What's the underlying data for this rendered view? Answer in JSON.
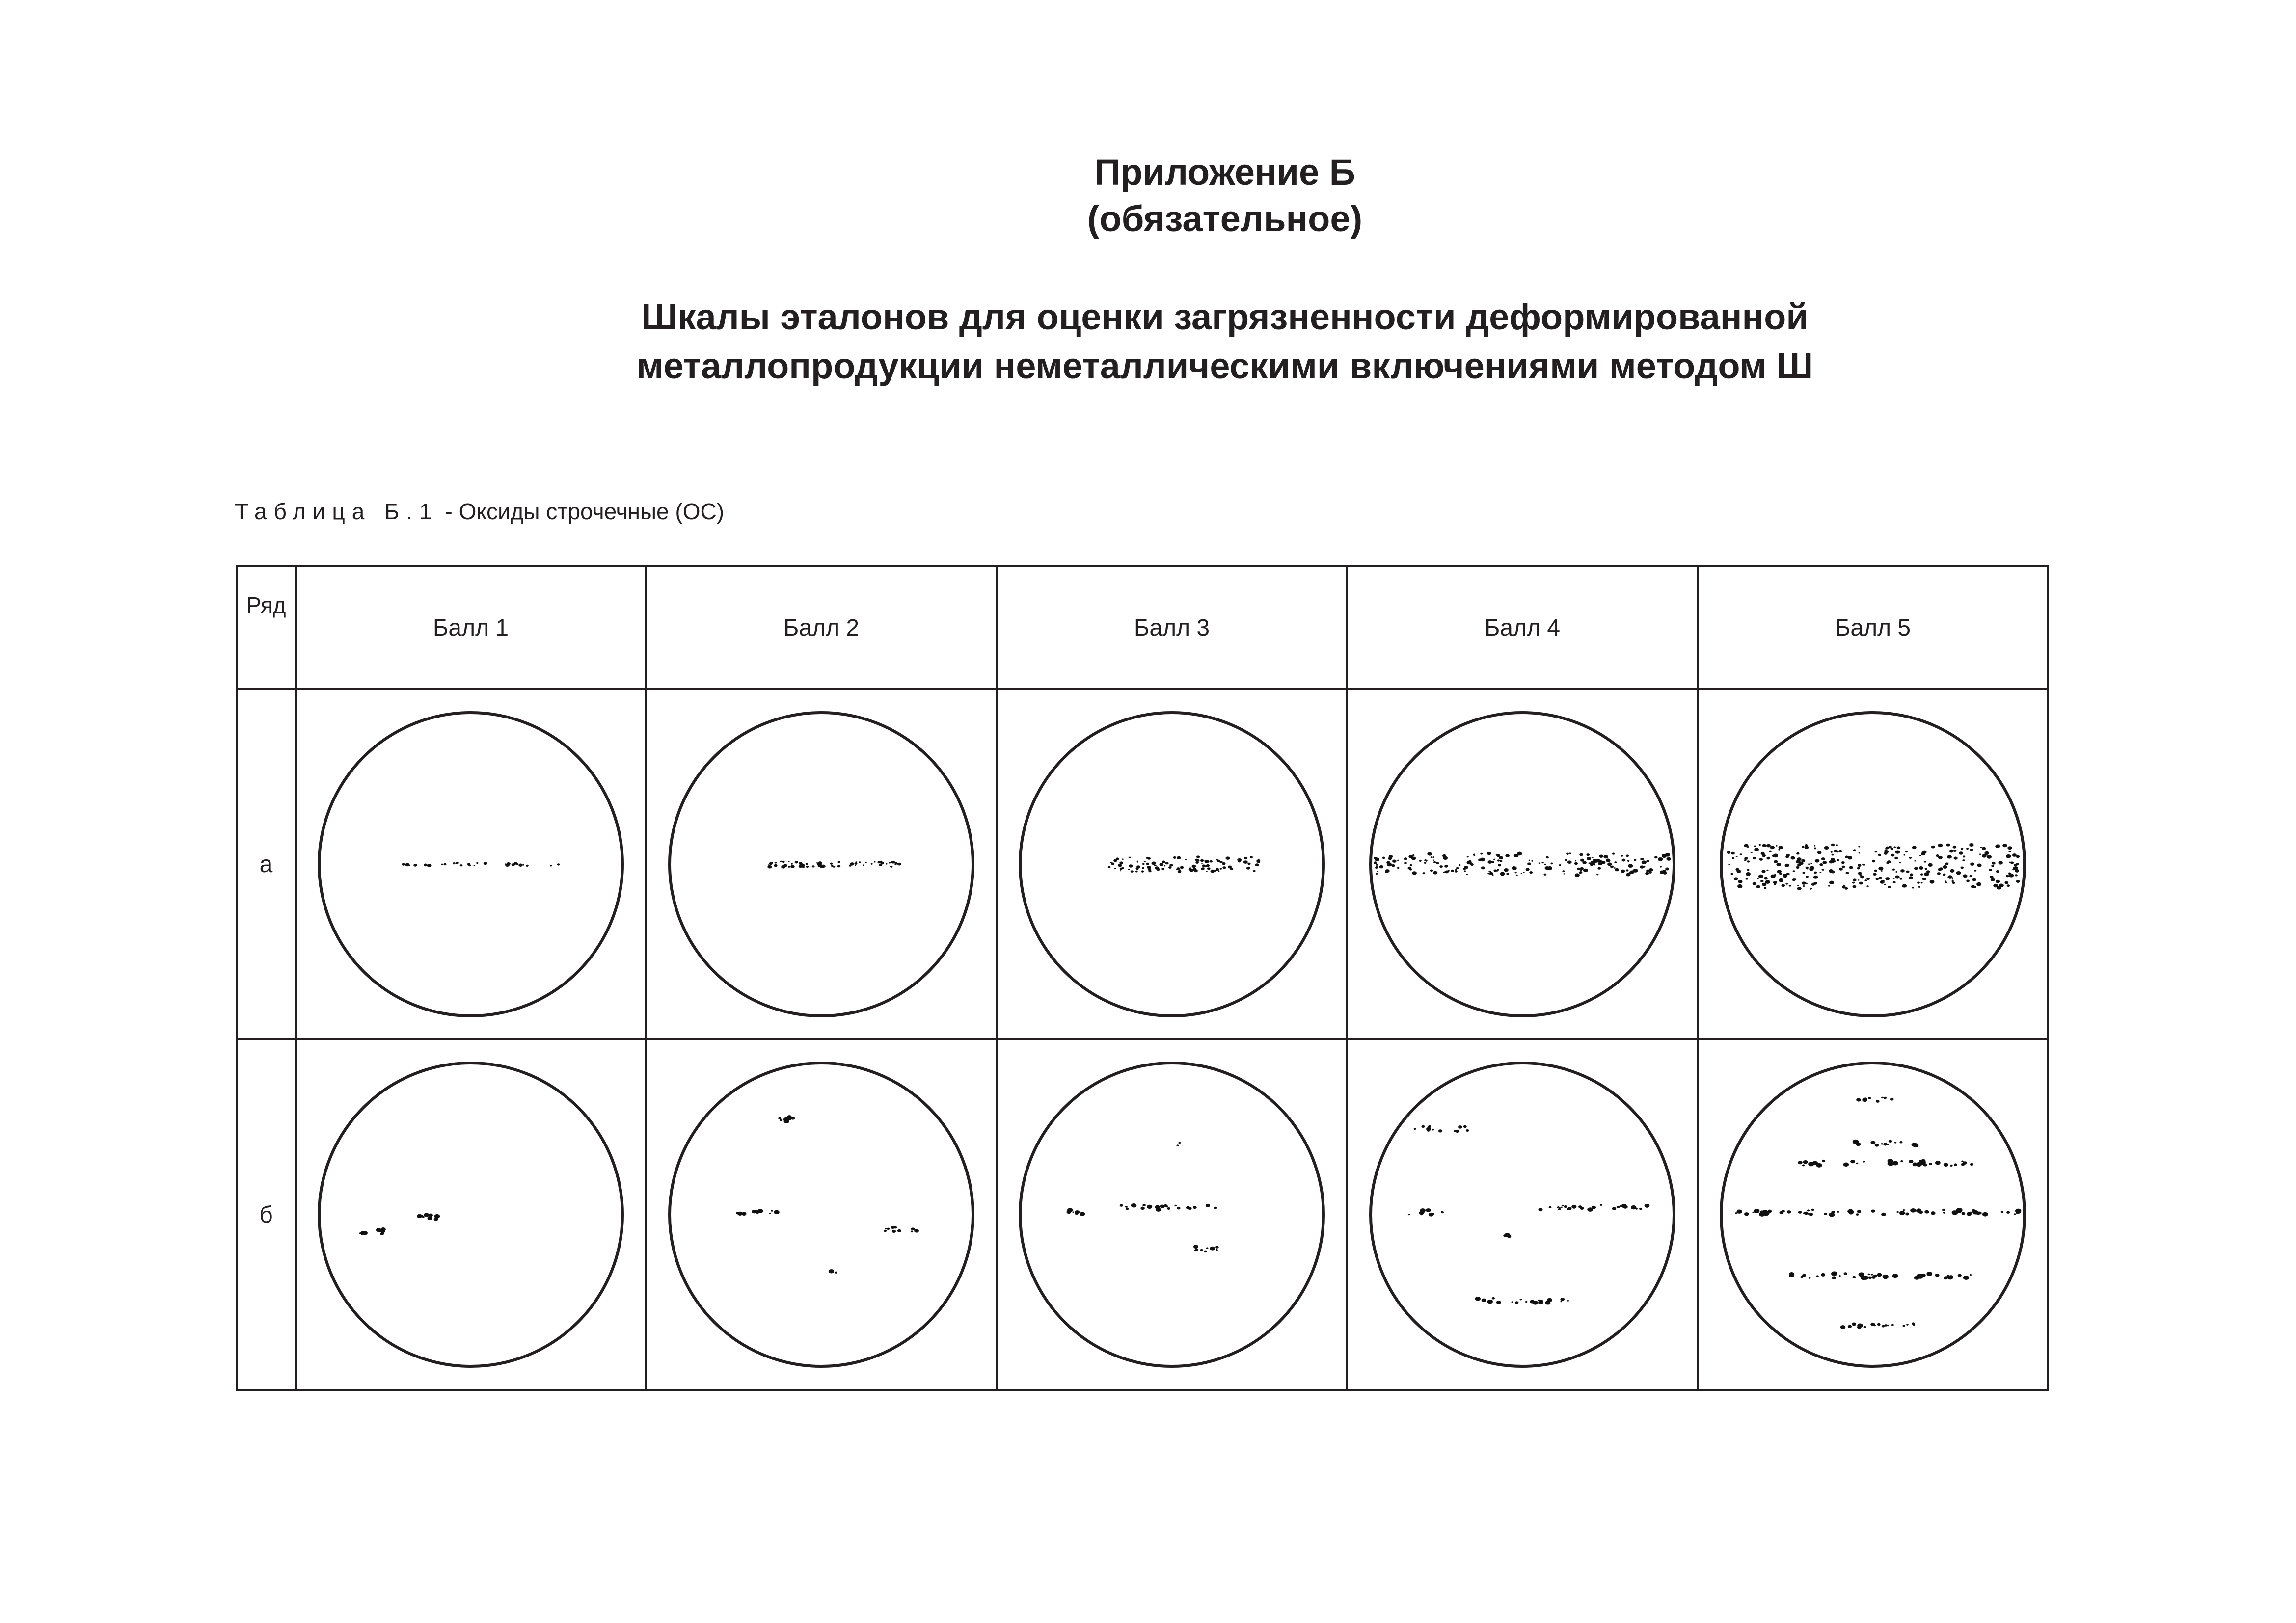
{
  "header": {
    "appendix": "Приложение Б",
    "status": "(обязательное)",
    "title_line1": "Шкалы эталонов для оценки загрязненности деформированной",
    "title_line2": "металлопродукции неметаллическими включениями методом Ш"
  },
  "table": {
    "caption_prefix": "Таблица Б.1",
    "caption_text": " - Оксиды строчечные (ОС)",
    "row_header": "Ряд",
    "columns": [
      "Балл 1",
      "Балл 2",
      "Балл 3",
      "Балл 4",
      "Балл 5"
    ],
    "rows": [
      {
        "label": "а",
        "pattern": "single-stringer",
        "scores": [
          1,
          2,
          3,
          4,
          5
        ]
      },
      {
        "label": "б",
        "pattern": "scattered-stringers",
        "scores": [
          1,
          2,
          3,
          4,
          5
        ]
      }
    ]
  }
}
